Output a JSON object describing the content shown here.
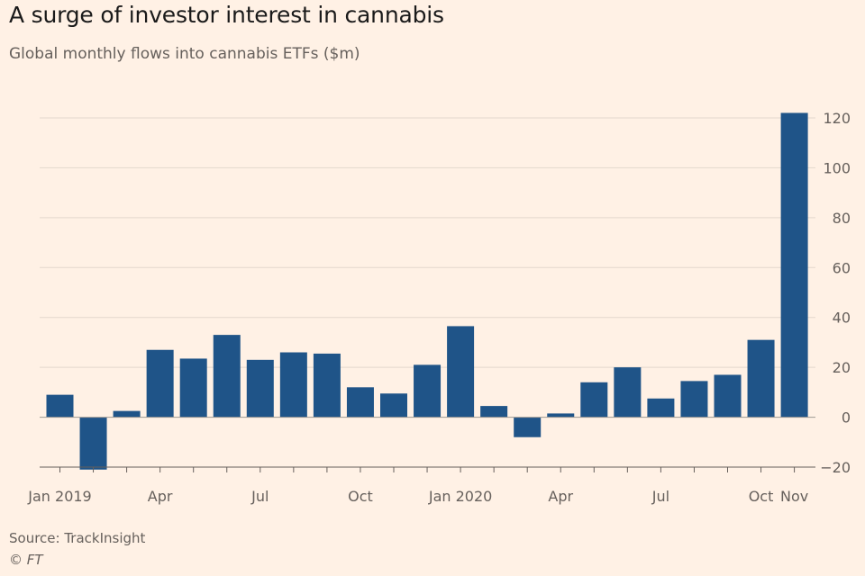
{
  "header": {
    "title": "A surge of investor interest in cannabis",
    "subtitle": "Global monthly flows into cannabis ETFs ($m)"
  },
  "footer": {
    "source": "Source: TrackInsight",
    "credit": "© FT"
  },
  "colors": {
    "background": "#fff1e5",
    "bar": "#1f5488",
    "grid": "#e3d8cd",
    "axis": "#66605c"
  },
  "chart_data": {
    "type": "bar",
    "title": "A surge of investor interest in cannabis",
    "subtitle": "Global monthly flows into cannabis ETFs ($m)",
    "xlabel": "",
    "ylabel": "",
    "ylim": [
      -20,
      120
    ],
    "y_axis_position": "right",
    "grid": true,
    "yticks": [
      120,
      100,
      80,
      60,
      40,
      20,
      0,
      -20
    ],
    "categories": [
      "Jan 2019",
      "Feb 2019",
      "Mar 2019",
      "Apr 2019",
      "May 2019",
      "Jun 2019",
      "Jul 2019",
      "Aug 2019",
      "Sep 2019",
      "Oct 2019",
      "Nov 2019",
      "Dec 2019",
      "Jan 2020",
      "Feb 2020",
      "Mar 2020",
      "Apr 2020",
      "May 2020",
      "Jun 2020",
      "Jul 2020",
      "Aug 2020",
      "Sep 2020",
      "Oct 2020",
      "Nov 2020"
    ],
    "values": [
      9,
      -21,
      2.5,
      27,
      23.5,
      33,
      23,
      26,
      25.5,
      12,
      9.5,
      21,
      36.5,
      4.5,
      -8,
      1.5,
      14,
      20,
      7.5,
      14.5,
      17,
      31,
      122
    ],
    "x_tick_labels": [
      {
        "index": 0,
        "label": "Jan 2019"
      },
      {
        "index": 3,
        "label": "Apr"
      },
      {
        "index": 6,
        "label": "Jul"
      },
      {
        "index": 9,
        "label": "Oct"
      },
      {
        "index": 12,
        "label": "Jan 2020"
      },
      {
        "index": 15,
        "label": "Apr"
      },
      {
        "index": 18,
        "label": "Jul"
      },
      {
        "index": 21,
        "label": "Oct"
      },
      {
        "index": 22,
        "label": "Nov"
      }
    ]
  }
}
